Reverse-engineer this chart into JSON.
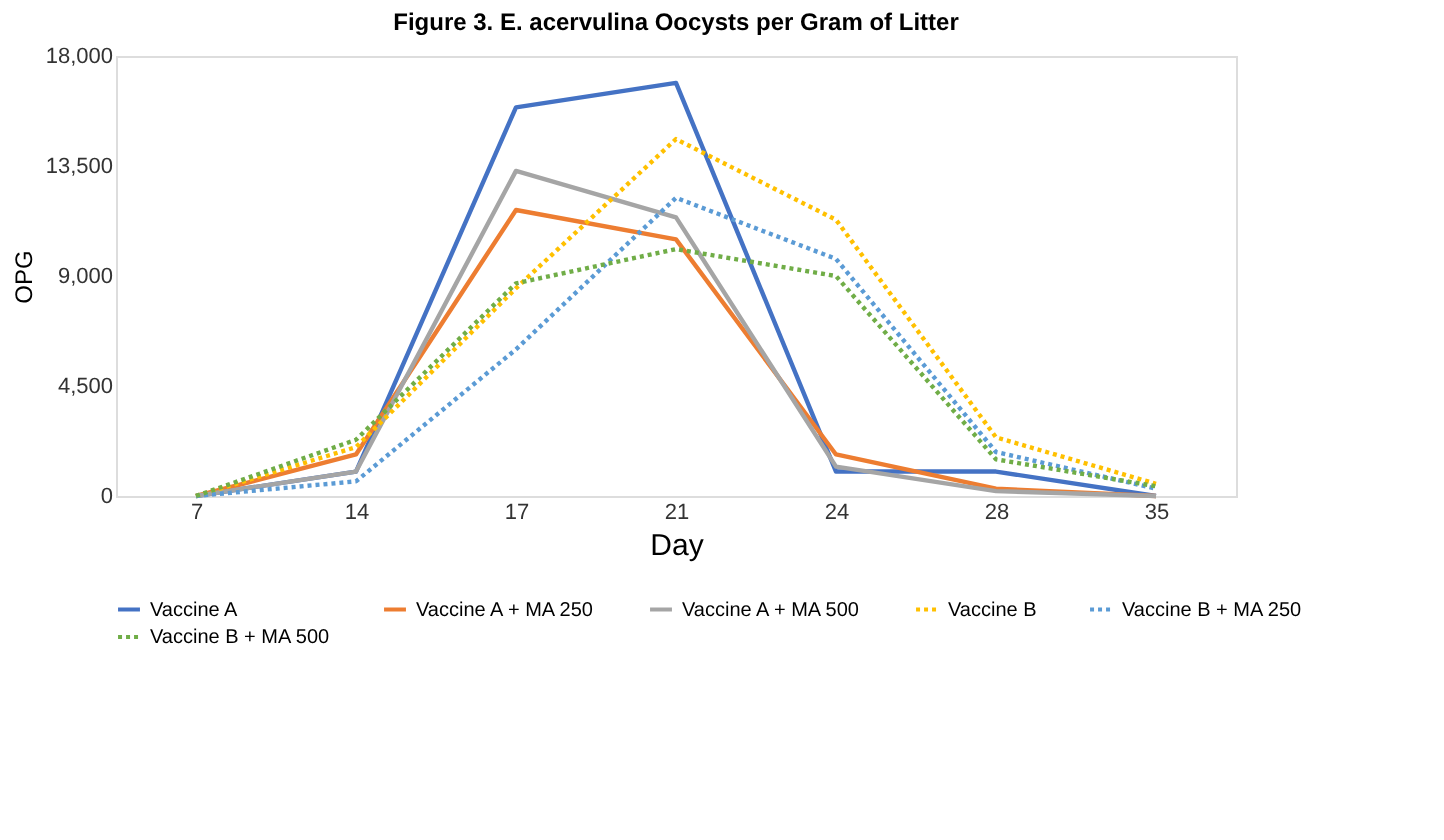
{
  "chart_data": {
    "type": "line",
    "title": "Figure 3. E. acervulina Oocysts per Gram of Litter",
    "xlabel": "Day",
    "ylabel": "OPG",
    "categories": [
      "7",
      "14",
      "17",
      "21",
      "24",
      "28",
      "35"
    ],
    "ylim": [
      0,
      18000
    ],
    "yticks": [
      {
        "value": 0,
        "label": "0"
      },
      {
        "value": 4500,
        "label": "4,500"
      },
      {
        "value": 9000,
        "label": "9,000"
      },
      {
        "value": 13500,
        "label": "13,500"
      },
      {
        "value": 18000,
        "label": "18,000"
      }
    ],
    "grid": false,
    "legend": "bottom",
    "marker": "none",
    "series": [
      {
        "name": "Vaccine A",
        "color": "#4472c4",
        "line_style": "solid",
        "values": [
          0,
          1000,
          15900,
          16900,
          1000,
          1000,
          0
        ]
      },
      {
        "name": "Vaccine A + MA 250",
        "color": "#ed7d31",
        "line_style": "solid",
        "values": [
          0,
          1700,
          11700,
          10500,
          1700,
          300,
          0
        ]
      },
      {
        "name": "Vaccine A + MA 500",
        "color": "#a5a5a5",
        "line_style": "solid",
        "values": [
          0,
          1000,
          13300,
          11400,
          1200,
          200,
          0
        ]
      },
      {
        "name": "Vaccine B",
        "color": "#ffc000",
        "line_style": "dotted",
        "values": [
          0,
          2000,
          8500,
          14600,
          11300,
          2400,
          500
        ]
      },
      {
        "name": "Vaccine B + MA 250",
        "color": "#5b9bd5",
        "line_style": "dotted",
        "values": [
          0,
          600,
          6000,
          12200,
          9700,
          1800,
          300
        ]
      },
      {
        "name": "Vaccine B + MA 500",
        "color": "#70ad47",
        "line_style": "dotted",
        "values": [
          0,
          2300,
          8700,
          10100,
          9000,
          1500,
          400
        ]
      }
    ]
  }
}
